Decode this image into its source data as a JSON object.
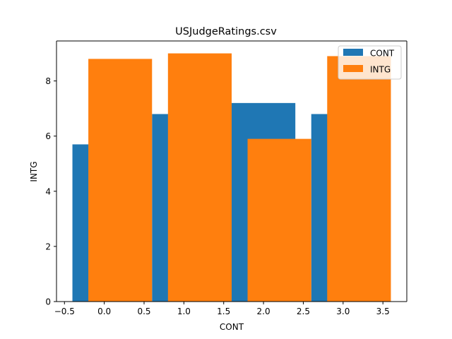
{
  "chart_data": {
    "type": "bar",
    "title": "USJudgeRatings.csv",
    "xlabel": "CONT",
    "ylabel": "INTG",
    "xlim": [
      -0.6,
      3.8
    ],
    "ylim": [
      0,
      9.45
    ],
    "bar_width": 0.8,
    "x_ticks": [
      -0.5,
      0.0,
      0.5,
      1.0,
      1.5,
      2.0,
      2.5,
      3.0,
      3.5
    ],
    "x_tick_labels": [
      "−0.5",
      "0.0",
      "0.5",
      "1.0",
      "1.5",
      "2.0",
      "2.5",
      "3.0",
      "3.5"
    ],
    "y_ticks": [
      0,
      2,
      4,
      6,
      8
    ],
    "y_tick_labels": [
      "0",
      "2",
      "4",
      "6",
      "8"
    ],
    "grid": false,
    "legend_position": "top-right",
    "series": [
      {
        "name": "CONT",
        "color": "#1f77b4",
        "x": [
          0,
          1,
          2,
          3
        ],
        "values": [
          5.7,
          6.8,
          7.2,
          6.8
        ]
      },
      {
        "name": "INTG",
        "color": "#ff7f0e",
        "x": [
          0.2,
          1.2,
          2.2,
          3.2
        ],
        "values": [
          8.8,
          9.0,
          5.9,
          8.9
        ]
      }
    ]
  }
}
